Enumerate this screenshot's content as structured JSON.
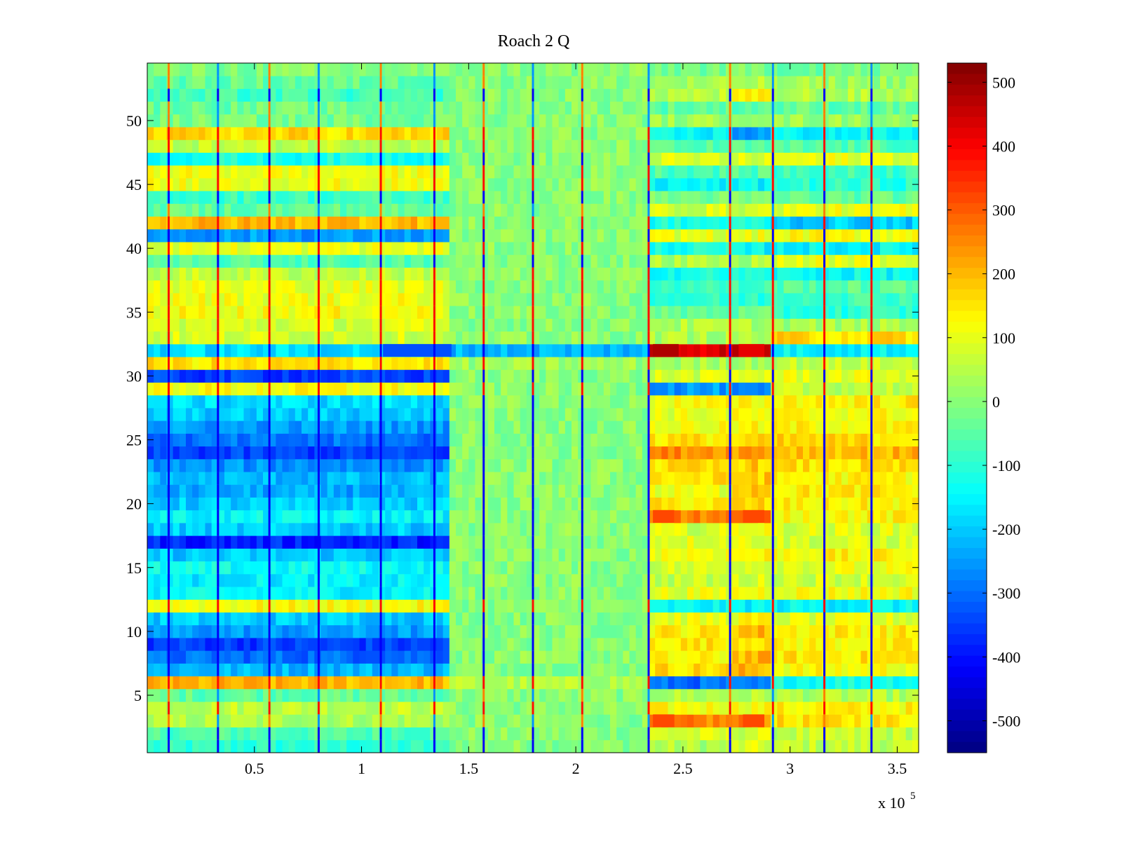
{
  "chart_data": {
    "type": "heatmap",
    "title": "Roach 2 Q",
    "xlabel": "",
    "ylabel": "",
    "x_multiplier_label": {
      "base": "x 10",
      "exponent": "5"
    },
    "xlim": [
      0,
      3.6
    ],
    "ylim": [
      0.5,
      54.5
    ],
    "clim": [
      -550,
      530
    ],
    "colormap": "jet",
    "rows": 54,
    "x_ticks": [
      0.5,
      1,
      1.5,
      2,
      2.5,
      3,
      3.5
    ],
    "x_tick_labels": [
      "0.5",
      "1",
      "1.5",
      "2",
      "2.5",
      "3",
      "3.5"
    ],
    "y_ticks": [
      5,
      10,
      15,
      20,
      25,
      30,
      35,
      40,
      45,
      50
    ],
    "y_tick_labels": [
      "5",
      "10",
      "15",
      "20",
      "25",
      "30",
      "35",
      "40",
      "45",
      "50"
    ],
    "colorbar_ticks": [
      500,
      400,
      300,
      200,
      100,
      0,
      -100,
      -200,
      -300,
      -400,
      -500
    ],
    "colorbar_tick_labels": [
      "500",
      "400",
      "300",
      "200",
      "100",
      "0",
      "-100",
      "-200",
      "-300",
      "-400",
      "-500"
    ],
    "x_segments": [
      0,
      1.42,
      2.33,
      2.73,
      2.9,
      3.6
    ],
    "row_levels": [
      [
        -100,
        0,
        40,
        80,
        60
      ],
      [
        -60,
        0,
        80,
        80,
        60
      ],
      [
        40,
        0,
        250,
        250,
        150
      ],
      [
        60,
        0,
        120,
        120,
        130
      ],
      [
        -40,
        0,
        40,
        40,
        40
      ],
      [
        200,
        40,
        -300,
        -300,
        -120
      ],
      [
        -220,
        0,
        160,
        200,
        120
      ],
      [
        -300,
        0,
        120,
        200,
        150
      ],
      [
        -350,
        0,
        150,
        170,
        130
      ],
      [
        -250,
        0,
        140,
        200,
        140
      ],
      [
        -200,
        0,
        100,
        120,
        90
      ],
      [
        120,
        0,
        -150,
        -150,
        -150
      ],
      [
        -150,
        0,
        100,
        120,
        120
      ],
      [
        -160,
        0,
        60,
        80,
        80
      ],
      [
        -140,
        0,
        80,
        100,
        100
      ],
      [
        -200,
        0,
        120,
        130,
        130
      ],
      [
        -380,
        0,
        100,
        100,
        80
      ],
      [
        -200,
        0,
        80,
        120,
        90
      ],
      [
        -150,
        0,
        260,
        260,
        130
      ],
      [
        -200,
        0,
        140,
        160,
        130
      ],
      [
        -240,
        0,
        100,
        200,
        140
      ],
      [
        -220,
        0,
        150,
        180,
        130
      ],
      [
        -260,
        0,
        150,
        180,
        150
      ],
      [
        -350,
        0,
        250,
        240,
        200
      ],
      [
        -300,
        0,
        150,
        150,
        160
      ],
      [
        -250,
        0,
        110,
        120,
        130
      ],
      [
        -200,
        0,
        100,
        110,
        120
      ],
      [
        -180,
        0,
        120,
        120,
        140
      ],
      [
        120,
        0,
        -250,
        -300,
        60
      ],
      [
        -350,
        0,
        80,
        100,
        100
      ],
      [
        150,
        20,
        30,
        40,
        60
      ],
      [
        -180,
        -220,
        440,
        440,
        -150
      ],
      [
        80,
        0,
        40,
        40,
        160
      ],
      [
        80,
        0,
        40,
        40,
        30
      ],
      [
        120,
        0,
        -40,
        -40,
        -100
      ],
      [
        110,
        0,
        -100,
        -100,
        -70
      ],
      [
        100,
        0,
        -80,
        -80,
        -50
      ],
      [
        60,
        0,
        -120,
        -120,
        -140
      ],
      [
        -60,
        0,
        40,
        40,
        100
      ],
      [
        100,
        0,
        -120,
        -150,
        -150
      ],
      [
        -250,
        0,
        100,
        100,
        120
      ],
      [
        200,
        0,
        -120,
        -120,
        -200
      ],
      [
        -40,
        0,
        80,
        80,
        100
      ],
      [
        -80,
        0,
        -20,
        -20,
        -40
      ],
      [
        110,
        0,
        -150,
        -150,
        -100
      ],
      [
        110,
        0,
        -60,
        -60,
        -80
      ],
      [
        -120,
        0,
        80,
        80,
        100
      ],
      [
        60,
        0,
        -60,
        -60,
        -60
      ],
      [
        160,
        0,
        -150,
        -250,
        -150
      ],
      [
        -20,
        0,
        20,
        40,
        20
      ],
      [
        -30,
        0,
        -40,
        -40,
        -40
      ],
      [
        -80,
        0,
        50,
        120,
        40
      ],
      [
        -40,
        0,
        20,
        40,
        20
      ],
      [
        -10,
        0,
        -20,
        -20,
        -20
      ]
    ],
    "vertical_stripes": [
      0.1,
      0.33,
      0.57,
      0.8,
      1.09,
      1.34,
      1.57,
      1.8,
      2.03,
      2.34,
      2.72,
      2.92,
      3.16,
      3.38
    ],
    "hot_spots": [
      {
        "x_start": 2.36,
        "x_end": 2.48,
        "row": 32,
        "value": 480
      },
      {
        "x_start": 2.76,
        "x_end": 2.88,
        "row": 32,
        "value": 420
      },
      {
        "x_start": 2.36,
        "x_end": 2.46,
        "row": 19,
        "value": 320
      },
      {
        "x_start": 2.78,
        "x_end": 2.88,
        "row": 19,
        "value": 320
      },
      {
        "x_start": 2.36,
        "x_end": 2.46,
        "row": 3,
        "value": 320
      },
      {
        "x_start": 2.78,
        "x_end": 2.88,
        "row": 3,
        "value": 320
      },
      {
        "x_start": 1.1,
        "x_end": 1.42,
        "row": 32,
        "value": -330
      }
    ]
  }
}
